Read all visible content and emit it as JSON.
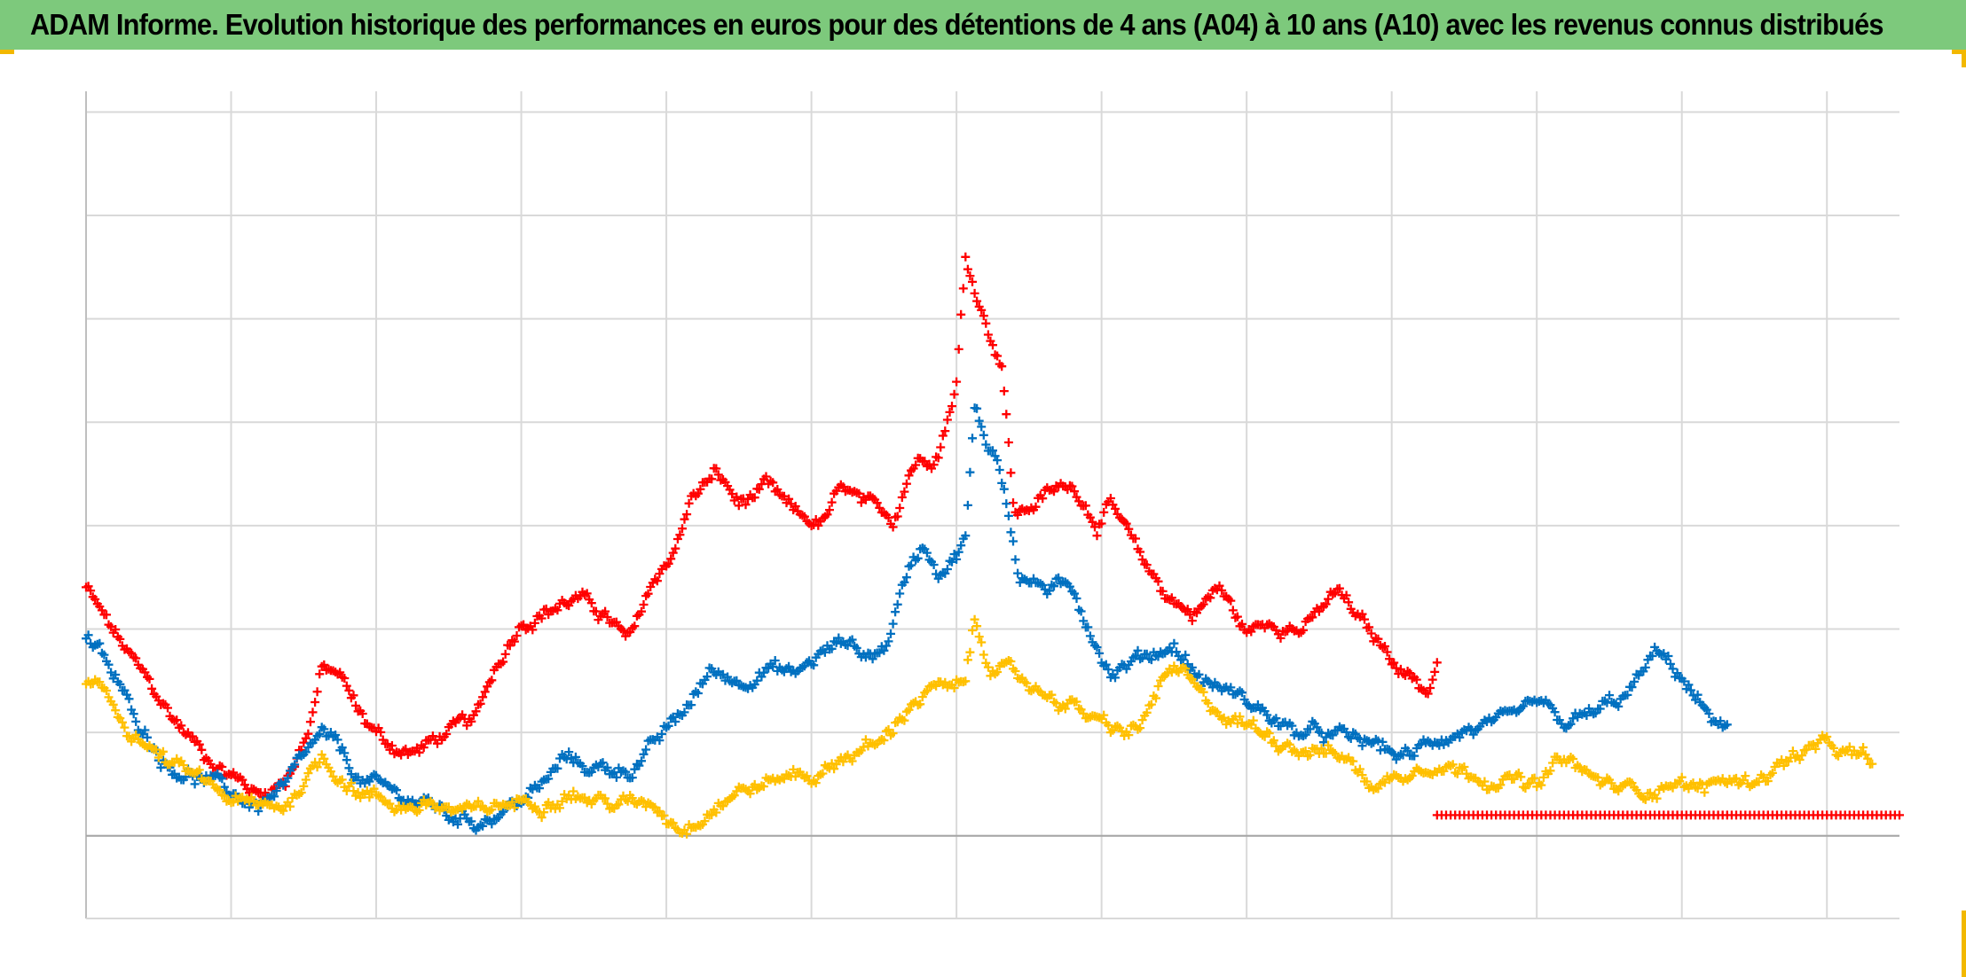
{
  "title": "ADAM Informe. Evolution historique des performances en euros pour des détentions de 4 ans (A04) à 10 ans (A10) avec les revenus connus distribués",
  "colors": {
    "title_background": "#7dc97c",
    "corner_accent": "#f2b800",
    "grid": "#d9d9d9",
    "zero_axis": "#a6a6a6"
  },
  "chart_data": {
    "type": "scatter",
    "marker": "plus",
    "title": "",
    "xlabel": "",
    "ylabel": "",
    "xlim": [
      0,
      1000
    ],
    "ylim": [
      -0.8,
      7.2
    ],
    "grid": true,
    "legend": "none",
    "series": [
      {
        "color": "#ff0000",
        "keypoints": [
          [
            0,
            2.4
          ],
          [
            10,
            2.1
          ],
          [
            25,
            1.7
          ],
          [
            45,
            1.2
          ],
          [
            65,
            0.8
          ],
          [
            80,
            0.6
          ],
          [
            95,
            0.4
          ],
          [
            110,
            0.55
          ],
          [
            123,
            1.05
          ],
          [
            130,
            1.6
          ],
          [
            140,
            1.55
          ],
          [
            150,
            1.2
          ],
          [
            165,
            0.9
          ],
          [
            180,
            0.8
          ],
          [
            200,
            1.0
          ],
          [
            215,
            1.1
          ],
          [
            225,
            1.6
          ],
          [
            240,
            2.1
          ],
          [
            255,
            2.2
          ],
          [
            270,
            2.3
          ],
          [
            285,
            2.15
          ],
          [
            300,
            1.85
          ],
          [
            310,
            2.35
          ],
          [
            325,
            2.8
          ],
          [
            335,
            3.3
          ],
          [
            348,
            3.5
          ],
          [
            360,
            3.2
          ],
          [
            375,
            3.35
          ],
          [
            390,
            3.1
          ],
          [
            405,
            3.0
          ],
          [
            418,
            3.35
          ],
          [
            430,
            3.15
          ],
          [
            445,
            3.05
          ],
          [
            455,
            3.6
          ],
          [
            470,
            3.75
          ],
          [
            480,
            4.4
          ],
          [
            485,
            5.6
          ],
          [
            492,
            5.2
          ],
          [
            500,
            4.8
          ],
          [
            505,
            4.6
          ],
          [
            512,
            3.1
          ],
          [
            530,
            3.3
          ],
          [
            545,
            3.4
          ],
          [
            557,
            3.05
          ],
          [
            565,
            3.2
          ],
          [
            580,
            2.7
          ],
          [
            595,
            2.35
          ],
          [
            610,
            2.15
          ],
          [
            625,
            2.4
          ],
          [
            640,
            1.95
          ],
          [
            655,
            2.1
          ],
          [
            672,
            2.0
          ],
          [
            690,
            2.35
          ],
          [
            710,
            1.9
          ],
          [
            740,
            1.4
          ],
          [
            745,
            1.7
          ]
        ]
      },
      {
        "color": "#0070c0",
        "keypoints": [
          [
            0,
            1.9
          ],
          [
            10,
            1.7
          ],
          [
            25,
            1.2
          ],
          [
            45,
            0.7
          ],
          [
            65,
            0.55
          ],
          [
            80,
            0.4
          ],
          [
            95,
            0.3
          ],
          [
            110,
            0.45
          ],
          [
            123,
            0.8
          ],
          [
            130,
            0.95
          ],
          [
            140,
            0.8
          ],
          [
            150,
            0.55
          ],
          [
            170,
            0.4
          ],
          [
            190,
            0.3
          ],
          [
            200,
            0.2
          ],
          [
            215,
            0.15
          ],
          [
            230,
            0.25
          ],
          [
            250,
            0.45
          ],
          [
            265,
            0.75
          ],
          [
            280,
            0.65
          ],
          [
            300,
            0.65
          ],
          [
            315,
            0.9
          ],
          [
            330,
            1.2
          ],
          [
            345,
            1.6
          ],
          [
            360,
            1.5
          ],
          [
            375,
            1.65
          ],
          [
            390,
            1.55
          ],
          [
            405,
            1.75
          ],
          [
            420,
            1.9
          ],
          [
            430,
            1.75
          ],
          [
            440,
            1.8
          ],
          [
            455,
            2.65
          ],
          [
            462,
            2.85
          ],
          [
            470,
            2.6
          ],
          [
            478,
            2.7
          ],
          [
            485,
            2.9
          ],
          [
            490,
            4.1
          ],
          [
            496,
            3.8
          ],
          [
            502,
            3.7
          ],
          [
            507,
            3.3
          ],
          [
            515,
            2.5
          ],
          [
            530,
            2.4
          ],
          [
            545,
            2.35
          ],
          [
            565,
            1.6
          ],
          [
            585,
            1.75
          ],
          [
            600,
            1.85
          ],
          [
            615,
            1.5
          ],
          [
            625,
            1.45
          ],
          [
            650,
            1.2
          ],
          [
            665,
            1.0
          ],
          [
            690,
            0.95
          ],
          [
            705,
            0.9
          ],
          [
            730,
            0.75
          ],
          [
            745,
            0.95
          ],
          [
            765,
            1.05
          ],
          [
            785,
            1.05
          ],
          [
            800,
            1.25
          ],
          [
            815,
            1.05
          ],
          [
            835,
            1.2
          ],
          [
            850,
            1.35
          ],
          [
            865,
            1.75
          ],
          [
            880,
            1.55
          ],
          [
            885,
            1.4
          ],
          [
            890,
            1.25
          ],
          [
            895,
            1.2
          ],
          [
            900,
            1.05
          ],
          [
            905,
            1.05
          ]
        ]
      },
      {
        "color": "#ffc000",
        "keypoints": [
          [
            0,
            1.45
          ],
          [
            10,
            1.35
          ],
          [
            25,
            1.0
          ],
          [
            45,
            0.7
          ],
          [
            65,
            0.5
          ],
          [
            80,
            0.35
          ],
          [
            95,
            0.25
          ],
          [
            110,
            0.3
          ],
          [
            123,
            0.6
          ],
          [
            130,
            0.75
          ],
          [
            140,
            0.6
          ],
          [
            150,
            0.45
          ],
          [
            170,
            0.3
          ],
          [
            190,
            0.3
          ],
          [
            200,
            0.25
          ],
          [
            215,
            0.2
          ],
          [
            230,
            0.3
          ],
          [
            250,
            0.35
          ],
          [
            265,
            0.45
          ],
          [
            280,
            0.35
          ],
          [
            300,
            0.3
          ],
          [
            315,
            0.3
          ],
          [
            320,
            0.2
          ],
          [
            330,
            0.1
          ],
          [
            345,
            0.3
          ],
          [
            360,
            0.45
          ],
          [
            375,
            0.5
          ],
          [
            390,
            0.6
          ],
          [
            405,
            0.6
          ],
          [
            420,
            0.8
          ],
          [
            440,
            0.9
          ],
          [
            455,
            1.3
          ],
          [
            470,
            1.45
          ],
          [
            478,
            1.35
          ],
          [
            485,
            1.5
          ],
          [
            490,
            2.05
          ],
          [
            498,
            1.7
          ],
          [
            505,
            1.6
          ],
          [
            520,
            1.45
          ],
          [
            535,
            1.35
          ],
          [
            550,
            1.2
          ],
          [
            565,
            1.0
          ],
          [
            580,
            1.0
          ],
          [
            595,
            1.55
          ],
          [
            605,
            1.55
          ],
          [
            615,
            1.3
          ],
          [
            630,
            1.15
          ],
          [
            650,
            1.0
          ],
          [
            665,
            0.9
          ],
          [
            680,
            0.85
          ],
          [
            695,
            0.75
          ],
          [
            705,
            0.55
          ],
          [
            715,
            0.5
          ],
          [
            725,
            0.6
          ],
          [
            740,
            0.75
          ],
          [
            755,
            0.65
          ],
          [
            770,
            0.6
          ],
          [
            785,
            0.55
          ],
          [
            800,
            0.45
          ],
          [
            815,
            0.75
          ],
          [
            830,
            0.55
          ],
          [
            845,
            0.45
          ],
          [
            860,
            0.45
          ],
          [
            875,
            0.55
          ],
          [
            890,
            0.45
          ],
          [
            905,
            0.55
          ],
          [
            915,
            0.5
          ],
          [
            930,
            0.65
          ],
          [
            945,
            0.8
          ],
          [
            960,
            0.85
          ],
          [
            975,
            0.75
          ],
          [
            985,
            0.7
          ]
        ]
      },
      {
        "color": "#ff0000",
        "keypoints": [
          [
            745,
            0.2
          ],
          [
            1000,
            0.2
          ]
        ]
      }
    ]
  }
}
